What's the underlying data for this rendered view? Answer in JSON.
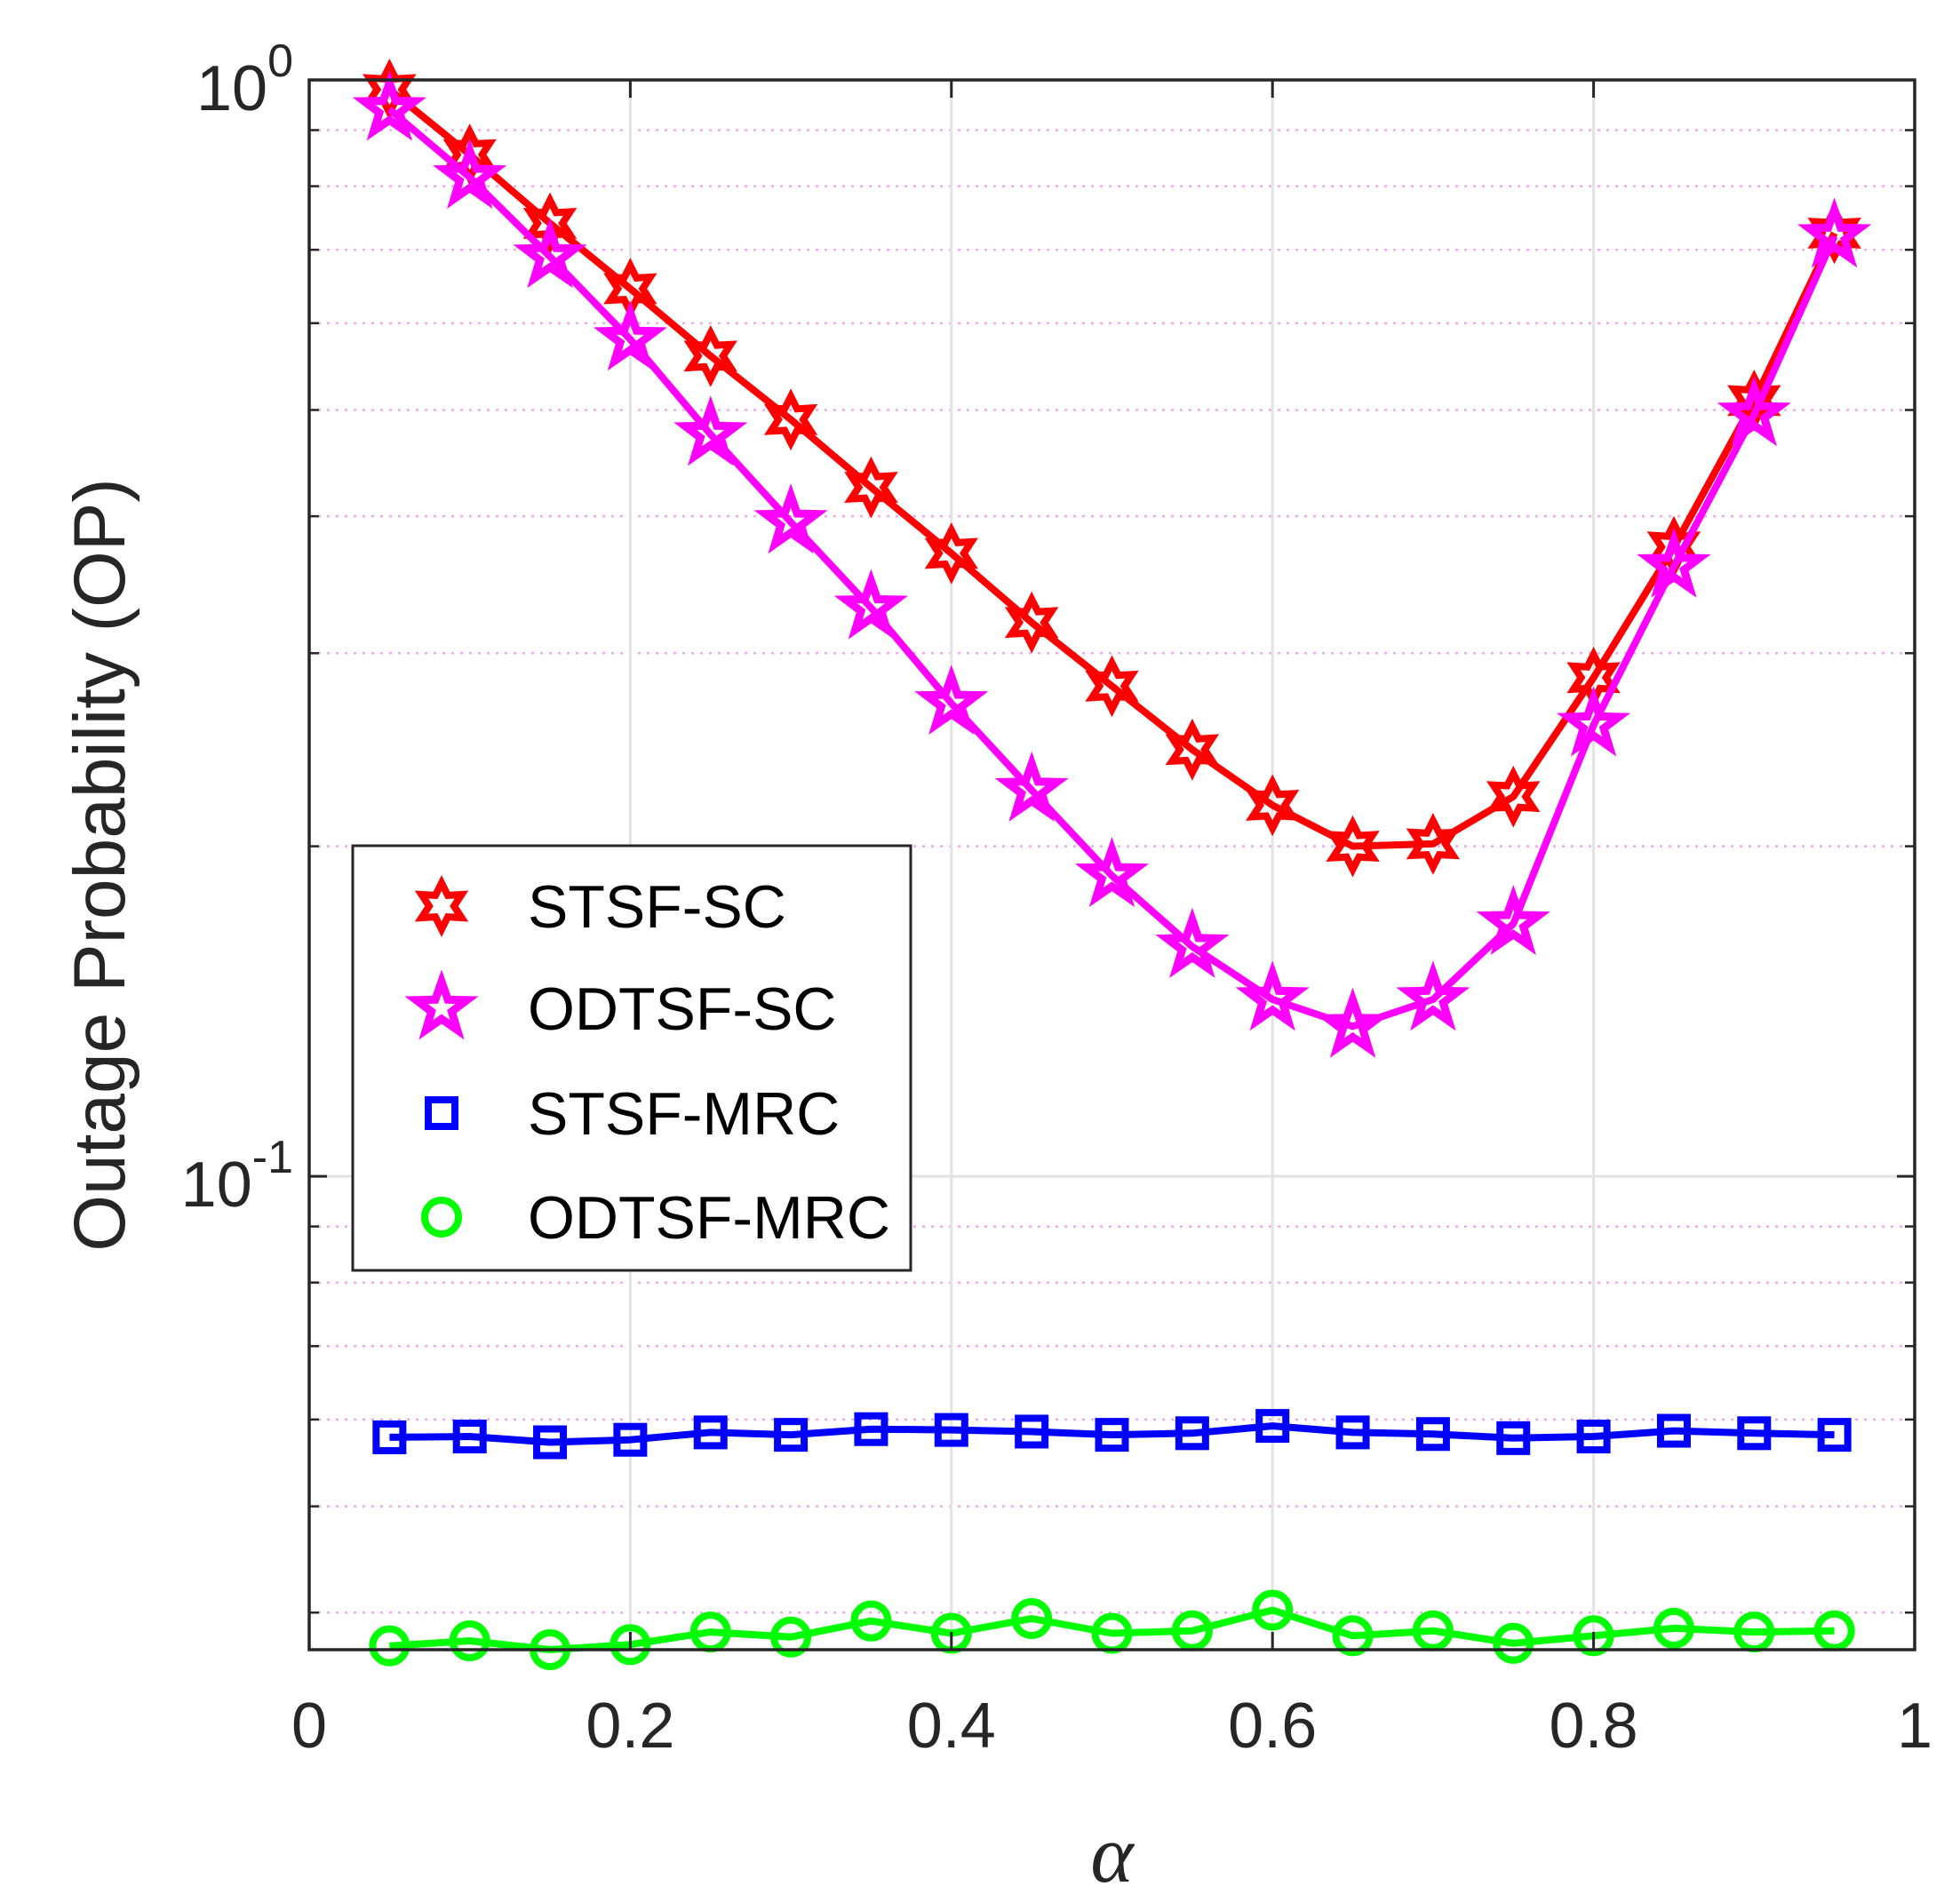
{
  "chart_data": {
    "type": "line",
    "title": "",
    "xlabel": "α",
    "ylabel": "Outage Probability (OP)",
    "xscale": "linear",
    "yscale": "log",
    "xlim": [
      0,
      1
    ],
    "ylim": [
      0.037,
      1
    ],
    "x_ticks": [
      0,
      0.2,
      0.4,
      0.6,
      0.8,
      1
    ],
    "x_tick_labels": [
      "0",
      "0.2",
      "0.4",
      "0.6",
      "0.8",
      "1"
    ],
    "y_ticks": [
      {
        "value": 1,
        "base": "10",
        "exponent": "0"
      },
      {
        "value": 0.1,
        "base": "10",
        "exponent": "-1"
      }
    ],
    "grid": "on (major solid gray, minor dotted magenta on y)",
    "legend_position": "middle-left",
    "x": [
      0.05,
      0.1,
      0.15,
      0.2,
      0.25,
      0.3,
      0.35,
      0.4,
      0.45,
      0.5,
      0.55,
      0.6,
      0.65,
      0.7,
      0.75,
      0.8,
      0.85,
      0.9,
      0.95
    ],
    "series": [
      {
        "name": "STSF-SC",
        "color": "#ff0000",
        "marker": "hexagram",
        "values": [
          0.98,
          0.855,
          0.74,
          0.645,
          0.56,
          0.49,
          0.425,
          0.37,
          0.32,
          0.28,
          0.245,
          0.218,
          0.2,
          0.201,
          0.222,
          0.285,
          0.375,
          0.51,
          0.725
        ]
      },
      {
        "name": "ODTSF-SC",
        "color": "#ff00ff",
        "marker": "pentagram",
        "values": [
          0.94,
          0.815,
          0.69,
          0.58,
          0.475,
          0.395,
          0.33,
          0.27,
          0.225,
          0.188,
          0.162,
          0.145,
          0.137,
          0.145,
          0.17,
          0.258,
          0.36,
          0.495,
          0.72
        ]
      },
      {
        "name": "STSF-MRC",
        "color": "#0000ff",
        "marker": "square",
        "values": [
          0.0578,
          0.0579,
          0.0572,
          0.0575,
          0.0584,
          0.0581,
          0.0588,
          0.0587,
          0.0585,
          0.0581,
          0.0583,
          0.0592,
          0.0584,
          0.0582,
          0.0577,
          0.0579,
          0.0586,
          0.0583,
          0.0581
        ]
      },
      {
        "name": "ODTSF-MRC",
        "color": "#00ff00",
        "marker": "circle",
        "values": [
          0.0373,
          0.0377,
          0.037,
          0.0374,
          0.0384,
          0.038,
          0.0393,
          0.0383,
          0.0395,
          0.0383,
          0.0385,
          0.0402,
          0.0381,
          0.0385,
          0.0375,
          0.0381,
          0.0387,
          0.0384,
          0.0385
        ]
      }
    ]
  }
}
